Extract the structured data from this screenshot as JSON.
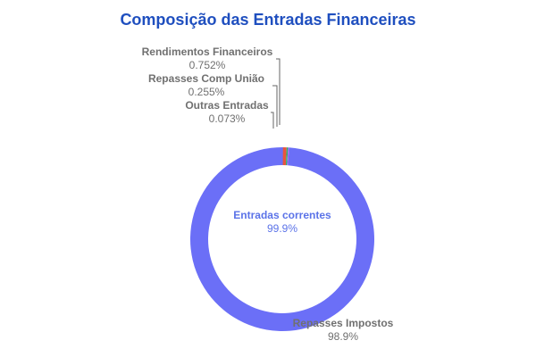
{
  "chart_data": {
    "type": "pie",
    "title": "Composição das Entradas Financeiras",
    "center_label": "Entradas correntes",
    "center_value": "99.9%",
    "slices": [
      {
        "label": "Repasses Impostos",
        "value_label": "98.9%",
        "value": 98.92,
        "color": "#6b6ff7"
      },
      {
        "label": "Rendimentos Financeiros",
        "value_label": "0.752%",
        "value": 0.752,
        "color": "#e8553d"
      },
      {
        "label": "Repasses Comp União",
        "value_label": "0.255%",
        "value": 0.255,
        "color": "#27b36f"
      },
      {
        "label": "Outras Entradas",
        "value_label": "0.073%",
        "value": 0.073,
        "color": "#aa63f2"
      }
    ],
    "colors": {
      "label_text": "#707070",
      "center_text": "#5b73e8",
      "leader": "#666666",
      "title": "#1f4fbf"
    }
  }
}
